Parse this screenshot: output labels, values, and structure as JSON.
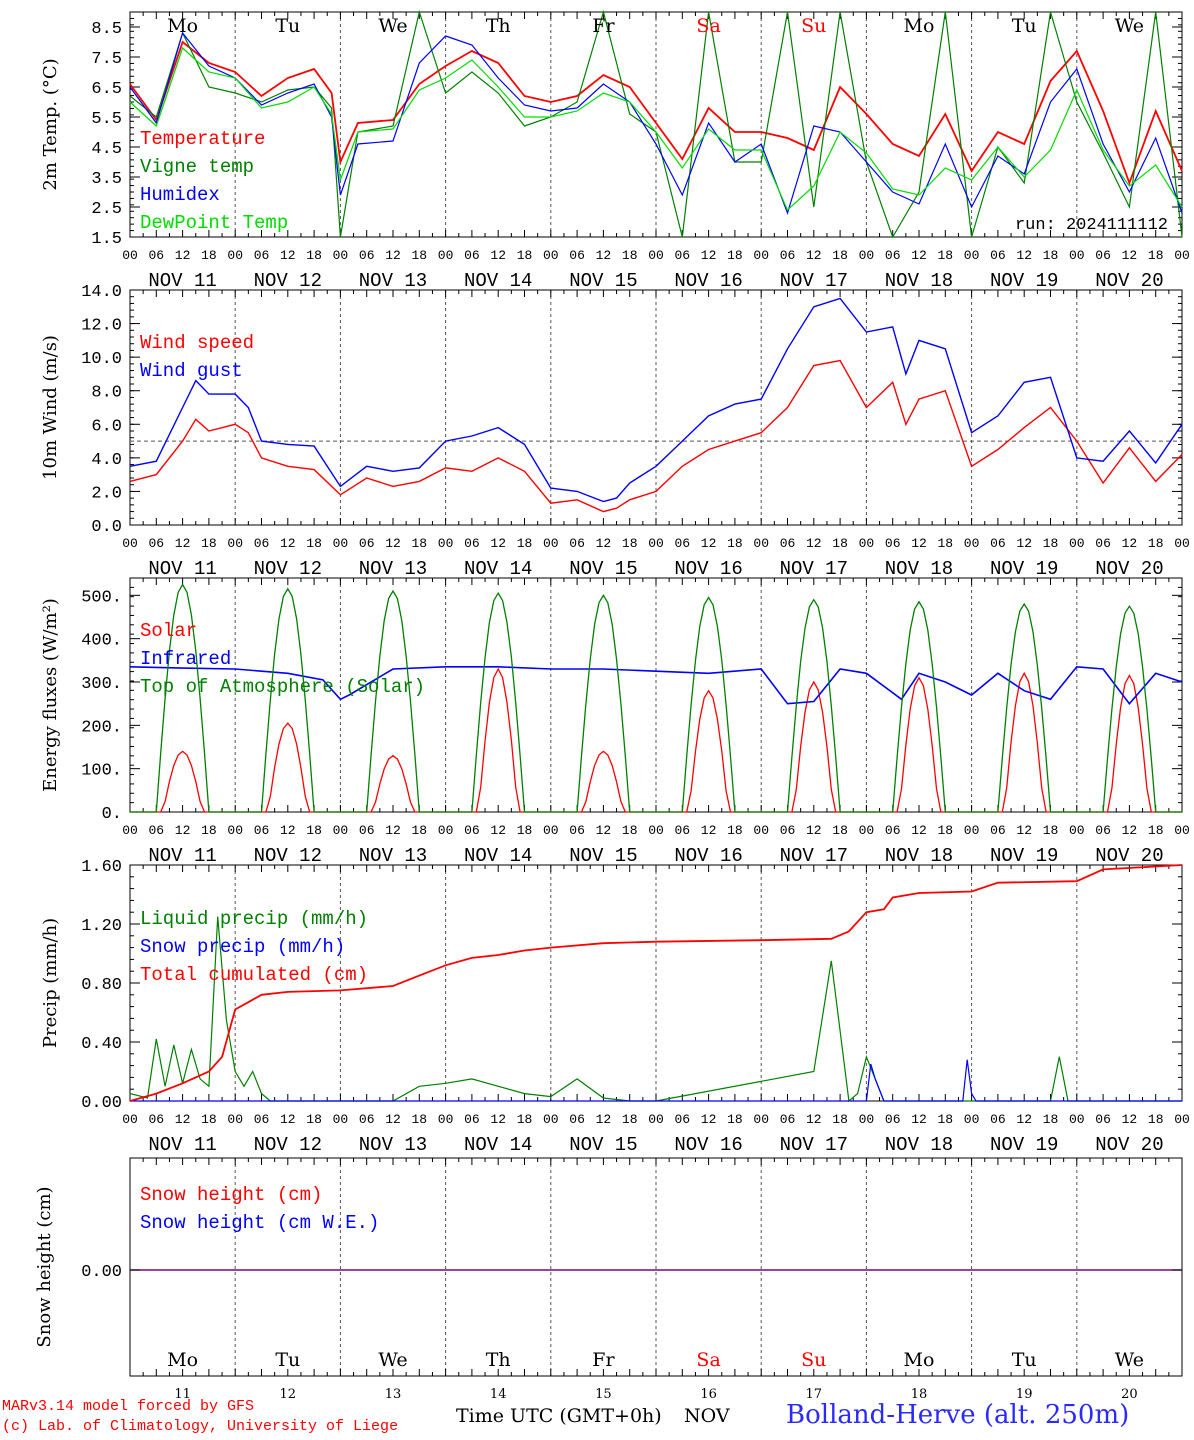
{
  "run_label": "run: 2024111112",
  "footer": {
    "model": "MARv3.14 model forced by GFS",
    "copyright": "(c) Lab. of Climatology, University of Liege",
    "time_label": "Time UTC (GMT+0h)",
    "month_label": "NOV",
    "location": "Bolland-Herve (alt. 250m)"
  },
  "days": [
    {
      "weekday": "Mo",
      "date": "NOV 11",
      "num": "11",
      "weekend": false
    },
    {
      "weekday": "Tu",
      "date": "NOV 12",
      "num": "12",
      "weekend": false
    },
    {
      "weekday": "We",
      "date": "NOV 13",
      "num": "13",
      "weekend": false
    },
    {
      "weekday": "Th",
      "date": "NOV 14",
      "num": "14",
      "weekend": false
    },
    {
      "weekday": "Fr",
      "date": "NOV 15",
      "num": "15",
      "weekend": false
    },
    {
      "weekday": "Sa",
      "date": "NOV 16",
      "num": "16",
      "weekend": true
    },
    {
      "weekday": "Su",
      "date": "NOV 17",
      "num": "17",
      "weekend": true
    },
    {
      "weekday": "Mo",
      "date": "NOV 18",
      "num": "18",
      "weekend": false
    },
    {
      "weekday": "Tu",
      "date": "NOV 19",
      "num": "19",
      "weekend": false
    },
    {
      "weekday": "We",
      "date": "NOV 20",
      "num": "20",
      "weekend": false
    }
  ],
  "hour_ticks": [
    "00",
    "06",
    "12",
    "18"
  ],
  "colors": {
    "red": "#ff0000",
    "green": "#008000",
    "blue": "#0000ff",
    "lightgreen": "#00dd00",
    "grid": "#555555",
    "purple": "#800080",
    "weekend": "#ff0000"
  },
  "chart_data": [
    {
      "type": "line",
      "ylabel": "2m Temp. (°C)",
      "ylim": [
        1.5,
        9.0
      ],
      "yticks": [
        "1.5",
        "2.5",
        "3.5",
        "4.5",
        "5.5",
        "6.5",
        "7.5",
        "8.5"
      ],
      "x_unit": "hours since Nov 11 00 UTC",
      "series": [
        {
          "name": "Temperature",
          "color": "red",
          "x": [
            0,
            6,
            12,
            18,
            24,
            30,
            36,
            42,
            46,
            48,
            52,
            60,
            66,
            72,
            78,
            84,
            90,
            96,
            102,
            108,
            114,
            120,
            126,
            132,
            138,
            144,
            150,
            156,
            162,
            168,
            174,
            180,
            186,
            192,
            198,
            204,
            210,
            216,
            222,
            228,
            234,
            240
          ],
          "values": [
            6.6,
            5.4,
            8.0,
            7.3,
            7.0,
            6.2,
            6.8,
            7.1,
            6.3,
            4.0,
            5.3,
            5.4,
            6.6,
            7.2,
            7.7,
            7.3,
            6.2,
            6.0,
            6.2,
            6.9,
            6.5,
            5.3,
            4.1,
            5.8,
            5.0,
            5.0,
            4.8,
            4.4,
            6.5,
            5.6,
            4.6,
            4.2,
            5.6,
            3.7,
            5.0,
            4.6,
            6.7,
            7.7,
            5.7,
            3.3,
            5.7,
            3.7
          ]
        },
        {
          "name": "Vigne temp",
          "color": "green",
          "x": [
            0,
            6,
            12,
            18,
            24,
            30,
            36,
            42,
            46,
            48,
            52,
            60,
            66,
            72,
            78,
            84,
            90,
            96,
            102,
            108,
            114,
            120,
            126,
            132,
            138,
            144,
            150,
            156,
            162,
            168,
            174,
            180,
            186,
            192,
            198,
            204,
            210,
            216,
            222,
            228,
            234,
            240
          ],
          "values": [
            6.2,
            5.5,
            8.3,
            6.5,
            6.3,
            6.0,
            6.4,
            6.5,
            5.8,
            1.5,
            5.0,
            5.2,
            9.0,
            6.3,
            7.0,
            6.3,
            5.2,
            5.5,
            6.0,
            9.0,
            5.6,
            5.0,
            1.5,
            9.0,
            4.0,
            4.0,
            9.0,
            2.5,
            9.0,
            4.0,
            1.5,
            3.0,
            9.0,
            1.5,
            4.5,
            3.3,
            9.0,
            6.0,
            4.3,
            2.5,
            9.0,
            1.5
          ]
        },
        {
          "name": "Humidex",
          "color": "blue",
          "x": [
            0,
            6,
            12,
            18,
            24,
            30,
            36,
            42,
            46,
            48,
            52,
            60,
            66,
            72,
            78,
            84,
            90,
            96,
            102,
            108,
            114,
            120,
            126,
            132,
            138,
            144,
            150,
            156,
            162,
            168,
            174,
            180,
            186,
            192,
            198,
            204,
            210,
            216,
            222,
            228,
            234,
            240
          ],
          "values": [
            6.5,
            5.3,
            8.3,
            7.2,
            6.8,
            5.9,
            6.3,
            6.6,
            5.5,
            2.9,
            4.6,
            4.7,
            7.3,
            8.2,
            7.9,
            6.8,
            5.9,
            5.7,
            5.8,
            6.6,
            6.0,
            4.6,
            2.9,
            5.3,
            4.0,
            4.6,
            2.3,
            5.2,
            5.0,
            4.0,
            3.0,
            2.6,
            4.6,
            2.5,
            4.2,
            3.6,
            6.0,
            7.1,
            4.6,
            3.0,
            4.8,
            2.3
          ]
        },
        {
          "name": "DewPoint Temp",
          "color": "lightgreen",
          "x": [
            0,
            6,
            12,
            18,
            24,
            30,
            36,
            42,
            46,
            48,
            52,
            60,
            66,
            72,
            78,
            84,
            90,
            96,
            102,
            108,
            114,
            120,
            126,
            132,
            138,
            144,
            150,
            156,
            162,
            168,
            174,
            180,
            186,
            192,
            198,
            204,
            210,
            216,
            222,
            228,
            234,
            240
          ],
          "values": [
            6.0,
            5.2,
            7.8,
            7.0,
            6.8,
            5.8,
            6.0,
            6.5,
            5.6,
            3.4,
            5.0,
            5.1,
            6.4,
            6.8,
            7.4,
            6.5,
            5.5,
            5.5,
            5.7,
            6.3,
            6.0,
            5.0,
            3.8,
            5.1,
            4.4,
            4.4,
            2.4,
            3.2,
            5.0,
            4.3,
            3.1,
            2.9,
            3.8,
            3.4,
            4.5,
            3.5,
            4.4,
            6.4,
            4.4,
            3.2,
            3.9,
            2.5
          ]
        }
      ]
    },
    {
      "type": "line",
      "ylabel": "10m Wind (m/s)",
      "ylim": [
        0.0,
        14.0
      ],
      "yticks": [
        "0.0",
        "2.0",
        "4.0",
        "6.0",
        "8.0",
        "10.0",
        "12.0",
        "14.0"
      ],
      "reference_line": 5.0,
      "series": [
        {
          "name": "Wind speed",
          "color": "red",
          "x": [
            0,
            6,
            12,
            15,
            18,
            24,
            27,
            30,
            36,
            42,
            48,
            54,
            60,
            66,
            72,
            78,
            84,
            90,
            96,
            102,
            108,
            111,
            114,
            120,
            126,
            132,
            138,
            144,
            150,
            156,
            162,
            168,
            174,
            177,
            180,
            186,
            192,
            198,
            204,
            210,
            216,
            222,
            228,
            234,
            240
          ],
          "values": [
            2.6,
            3.0,
            5.0,
            6.3,
            5.6,
            6.0,
            5.5,
            4.0,
            3.5,
            3.3,
            1.8,
            2.8,
            2.3,
            2.6,
            3.4,
            3.2,
            4.0,
            3.2,
            1.3,
            1.5,
            0.8,
            1.0,
            1.5,
            2.0,
            3.5,
            4.5,
            5.0,
            5.5,
            7.0,
            9.5,
            9.8,
            7.0,
            8.5,
            6.0,
            7.5,
            8.0,
            3.5,
            4.5,
            5.8,
            7.0,
            5.0,
            2.5,
            4.6,
            2.6,
            4.2
          ]
        },
        {
          "name": "Wind gust",
          "color": "blue",
          "x": [
            0,
            6,
            12,
            15,
            18,
            24,
            27,
            30,
            36,
            42,
            48,
            54,
            60,
            66,
            72,
            78,
            84,
            90,
            96,
            102,
            108,
            111,
            114,
            120,
            126,
            132,
            138,
            144,
            150,
            156,
            162,
            168,
            174,
            177,
            180,
            186,
            192,
            198,
            204,
            210,
            216,
            222,
            228,
            234,
            240
          ],
          "values": [
            3.5,
            3.8,
            7.0,
            8.6,
            7.8,
            7.8,
            7.0,
            5.0,
            4.8,
            4.7,
            2.3,
            3.5,
            3.2,
            3.4,
            5.0,
            5.3,
            5.8,
            4.8,
            2.2,
            2.0,
            1.4,
            1.6,
            2.5,
            3.5,
            5.0,
            6.5,
            7.2,
            7.5,
            10.5,
            13.0,
            13.5,
            11.5,
            11.8,
            9.0,
            11.0,
            10.5,
            5.5,
            6.5,
            8.5,
            8.8,
            4.0,
            3.8,
            5.6,
            3.7,
            6.0
          ]
        }
      ]
    },
    {
      "type": "line",
      "ylabel": "Energy fluxes (W/m²)",
      "ylim": [
        0,
        540
      ],
      "yticks": [
        "0.",
        "100.",
        "200.",
        "300.",
        "400.",
        "500."
      ],
      "series": [
        {
          "name": "Solar",
          "color": "red",
          "peaks": [
            140,
            205,
            130,
            330,
            140,
            280,
            300,
            310,
            320,
            315
          ]
        },
        {
          "name": "Infrared",
          "color": "blue",
          "x": [
            0,
            12,
            24,
            36,
            44,
            48,
            50,
            60,
            72,
            84,
            96,
            108,
            120,
            132,
            144,
            150,
            156,
            162,
            168,
            176,
            180,
            186,
            192,
            198,
            204,
            210,
            216,
            222,
            228,
            234,
            240
          ],
          "values": [
            335,
            332,
            330,
            320,
            305,
            260,
            270,
            330,
            335,
            335,
            330,
            330,
            325,
            320,
            330,
            250,
            255,
            330,
            320,
            260,
            320,
            300,
            270,
            320,
            280,
            260,
            335,
            330,
            250,
            320,
            300
          ]
        },
        {
          "name": "Top of Atmosphere (Solar)",
          "color": "green",
          "peaks": [
            525,
            515,
            510,
            505,
            500,
            495,
            490,
            485,
            480,
            475
          ]
        }
      ]
    },
    {
      "type": "line",
      "ylabel": "Precip (mm/h)",
      "ylim": [
        0.0,
        1.6
      ],
      "yticks": [
        "0.00",
        "0.40",
        "0.80",
        "1.20",
        "1.60"
      ],
      "series": [
        {
          "name": "Liquid precip (mm/h)",
          "color": "green",
          "x": [
            0,
            4,
            6,
            8,
            10,
            12,
            14,
            16,
            18,
            20,
            22,
            24,
            26,
            28,
            30,
            32,
            34,
            36,
            40,
            48,
            60,
            66,
            72,
            78,
            84,
            90,
            96,
            102,
            108,
            114,
            120,
            156,
            160,
            164,
            166,
            168,
            172,
            174,
            176,
            180,
            184,
            192,
            198,
            202,
            204,
            210,
            212,
            214,
            216,
            222,
            240
          ],
          "values": [
            0.05,
            0.02,
            0.42,
            0.1,
            0.38,
            0.12,
            0.35,
            0.15,
            0.1,
            1.25,
            0.55,
            0.2,
            0.1,
            0.2,
            0.05,
            0.0,
            0.0,
            0.0,
            0.0,
            0.0,
            0.0,
            0.1,
            0.12,
            0.15,
            0.1,
            0.05,
            0.03,
            0.15,
            0.02,
            0.0,
            0.0,
            0.2,
            0.95,
            0.0,
            0.05,
            0.3,
            0.0,
            0.0,
            0.0,
            0.0,
            0.0,
            0.0,
            0.0,
            0.0,
            0.0,
            0.0,
            0.3,
            0.0,
            0.0,
            0.0,
            0.0
          ]
        },
        {
          "name": "Snow precip (mm/h)",
          "color": "blue",
          "x": [
            0,
            160,
            168,
            169,
            170,
            172,
            190,
            191,
            192,
            193,
            240
          ],
          "values": [
            0.0,
            0.0,
            0.0,
            0.25,
            0.15,
            0.0,
            0.0,
            0.28,
            0.05,
            0.0,
            0.0
          ]
        },
        {
          "name": "Total cumulated (cm)",
          "color": "red",
          "x": [
            0,
            6,
            12,
            18,
            21,
            24,
            30,
            36,
            48,
            60,
            66,
            72,
            78,
            84,
            90,
            96,
            108,
            120,
            144,
            160,
            164,
            168,
            172,
            174,
            180,
            192,
            198,
            216,
            222,
            240
          ],
          "values": [
            0.0,
            0.05,
            0.12,
            0.2,
            0.3,
            0.62,
            0.72,
            0.74,
            0.75,
            0.78,
            0.85,
            0.92,
            0.97,
            0.99,
            1.02,
            1.04,
            1.07,
            1.08,
            1.09,
            1.1,
            1.15,
            1.28,
            1.3,
            1.38,
            1.41,
            1.42,
            1.48,
            1.49,
            1.57,
            1.6
          ]
        }
      ]
    },
    {
      "type": "line",
      "ylabel": "Snow height (cm)",
      "yticks": [
        "0.00"
      ],
      "series": [
        {
          "name": "Snow height (cm)",
          "color": "red",
          "x": [
            0,
            240
          ],
          "values": [
            0,
            0
          ]
        },
        {
          "name": "Snow height (cm W.E.)",
          "color": "blue",
          "x": [
            0,
            240
          ],
          "values": [
            0,
            0
          ]
        }
      ]
    }
  ]
}
